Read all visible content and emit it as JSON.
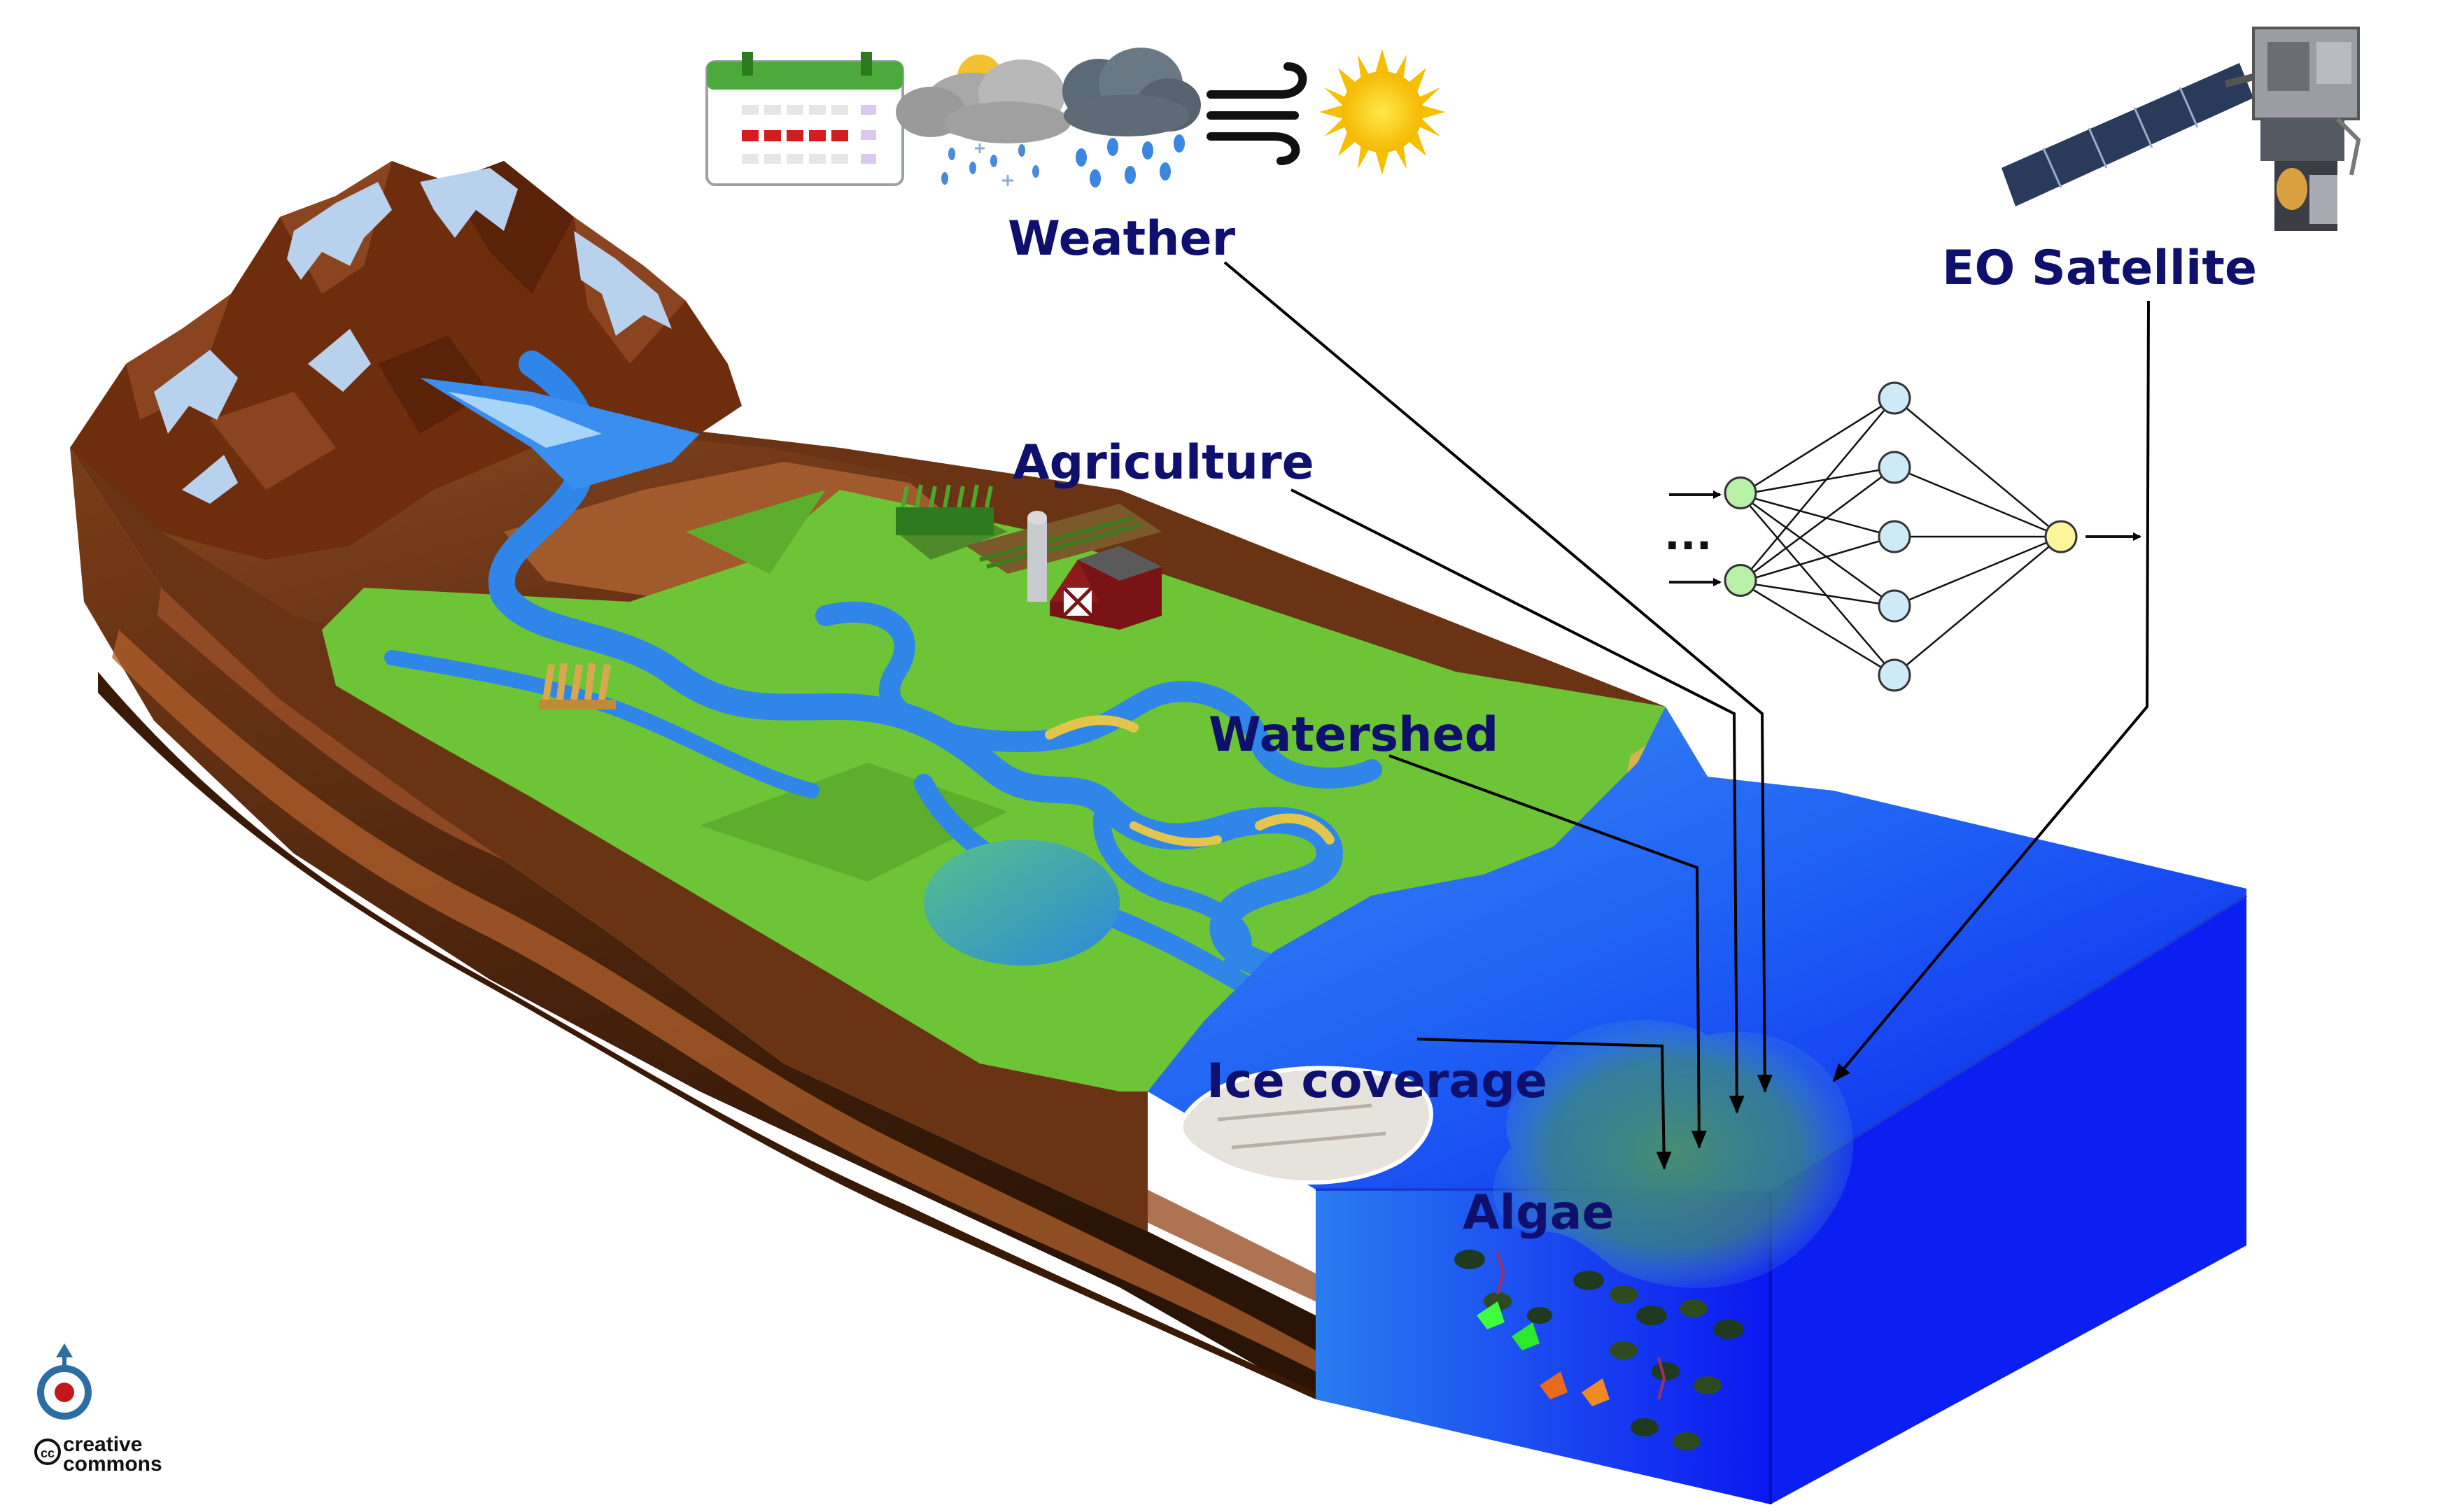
{
  "labels": {
    "weather": "Weather",
    "eo_satellite": "EO Satellite",
    "agriculture": "Agriculture",
    "watershed": "Watershed",
    "ice_coverage": "Ice coverage",
    "algae": "Algae"
  },
  "network": {
    "ellipsis": "...",
    "layers": [
      {
        "nodes": 2,
        "color": "#b9f0a8"
      },
      {
        "nodes": 5,
        "color": "#cfeaf7"
      },
      {
        "nodes": 1,
        "color": "#fbf59b"
      }
    ]
  },
  "weather_icons": [
    "calendar-icon",
    "rain-snow-cloud-icon",
    "rain-cloud-icon",
    "wind-icon",
    "sun-icon"
  ],
  "license": {
    "line1": "creative",
    "line2": "commons"
  },
  "colors": {
    "label_text": "#0f0f6e",
    "land_green": "#6cc436",
    "soil_brown": "#5a2e12",
    "water_blue": "#2a6fe8",
    "lake_blue": "#0b1ff2",
    "river_blue": "#2f86e8",
    "snow": "#b8d2ee"
  }
}
